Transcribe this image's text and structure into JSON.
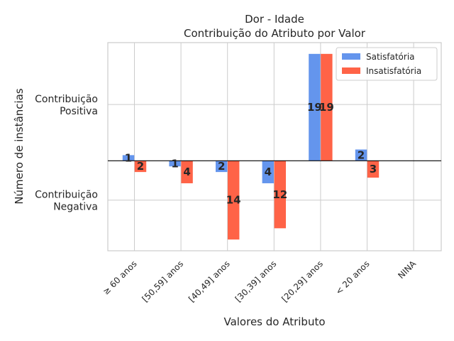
{
  "chart_data": {
    "type": "bar",
    "title": "Dor - Idade",
    "subtitle": "Contribuição do Atributo por Valor",
    "xlabel": "Valores do Atributo",
    "ylabel": "Número de instâncias",
    "categories": [
      "≥ 60 anos",
      "[50,59] anos",
      "[40,49] anos",
      "[30,39] anos",
      "[20,29] anos",
      "< 20 anos",
      "NINA"
    ],
    "series": [
      {
        "name": "Satisfatória",
        "color": "#6495ED",
        "values": [
          1,
          -1,
          -2,
          -4,
          19,
          2,
          0
        ],
        "labels": [
          "1",
          "1",
          "2",
          "4",
          "19",
          "2",
          ""
        ]
      },
      {
        "name": "Insatisfatória",
        "color": "#FF6347",
        "values": [
          -2,
          -4,
          -14,
          -12,
          19,
          -3,
          0
        ],
        "labels": [
          "2",
          "4",
          "14",
          "12",
          "19",
          "3",
          ""
        ]
      }
    ],
    "y_ticks": [
      {
        "value": 10,
        "label_lines": [
          "Contribuição",
          "Positiva"
        ]
      },
      {
        "value": -7,
        "label_lines": [
          "Contribuição",
          "Negativa"
        ]
      }
    ],
    "ylim": [
      -16,
      21
    ],
    "grid": true,
    "legend_position": "top-right"
  }
}
